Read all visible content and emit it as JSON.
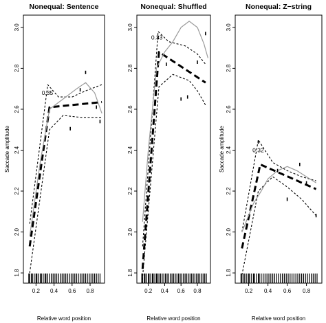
{
  "chart_data": [
    {
      "type": "line",
      "title": "Nonequal: Sentence",
      "xlabel": "Relative word position",
      "ylabel": "Saccade amplitude",
      "xticks": [
        0.2,
        0.4,
        0.6,
        0.8
      ],
      "yticks": [
        1.8,
        2.0,
        2.2,
        2.4,
        2.6,
        2.8,
        3.0
      ],
      "xlim": [
        0.06,
        0.96
      ],
      "ylim": [
        1.75,
        3.06
      ],
      "breakpoint": {
        "x": 0.35,
        "label": "0.35"
      },
      "series": [
        {
          "style": "fit",
          "x": [
            0.13,
            0.35,
            0.93
          ],
          "y": [
            1.93,
            2.61,
            2.635
          ]
        },
        {
          "style": "ci_upper",
          "x": [
            0.13,
            0.33,
            0.45,
            0.6,
            0.75,
            0.93
          ],
          "y": [
            2.04,
            2.72,
            2.66,
            2.66,
            2.69,
            2.72
          ]
        },
        {
          "style": "ci_lower",
          "x": [
            0.13,
            0.35,
            0.5,
            0.7,
            0.93
          ],
          "y": [
            1.8,
            2.5,
            2.57,
            2.56,
            2.56
          ]
        },
        {
          "style": "loess",
          "x": [
            0.13,
            0.25,
            0.35,
            0.5,
            0.65,
            0.75,
            0.85,
            0.93
          ],
          "y": [
            1.98,
            2.35,
            2.6,
            2.65,
            2.7,
            2.73,
            2.68,
            2.58
          ]
        }
      ],
      "points": {
        "x": [
          0.58,
          0.69,
          0.75,
          0.87,
          0.91
        ],
        "y": [
          2.505,
          2.695,
          2.78,
          2.61,
          2.54
        ]
      },
      "rug": [
        0.12,
        0.13,
        0.15,
        0.16,
        0.18,
        0.2,
        0.21,
        0.23,
        0.25,
        0.26,
        0.28,
        0.3,
        0.31,
        0.33,
        0.35,
        0.37,
        0.39,
        0.41,
        0.43,
        0.45,
        0.47,
        0.49,
        0.51,
        0.53,
        0.55,
        0.57,
        0.59,
        0.61,
        0.63,
        0.65,
        0.67,
        0.69,
        0.71,
        0.73,
        0.75,
        0.77,
        0.79,
        0.81,
        0.83,
        0.85,
        0.87,
        0.89,
        0.91
      ]
    },
    {
      "type": "line",
      "title": "Nonequal: Shuffled",
      "xlabel": "Relative word position",
      "ylabel": "",
      "xticks": [
        0.2,
        0.4,
        0.6,
        0.8
      ],
      "yticks": [
        1.8,
        2.0,
        2.2,
        2.4,
        2.6,
        2.8,
        3.0
      ],
      "xlim": [
        0.06,
        0.96
      ],
      "ylim": [
        1.75,
        3.06
      ],
      "breakpoint": {
        "x": 0.33,
        "label": "0.33"
      },
      "series": [
        {
          "style": "fit",
          "x": [
            0.13,
            0.33,
            0.9
          ],
          "y": [
            1.82,
            2.88,
            2.73
          ]
        },
        {
          "style": "ci_upper",
          "x": [
            0.13,
            0.32,
            0.45,
            0.65,
            0.8,
            0.9
          ],
          "y": [
            1.93,
            2.98,
            2.93,
            2.91,
            2.87,
            2.82
          ]
        },
        {
          "style": "ci_lower",
          "x": [
            0.12,
            0.33,
            0.5,
            0.7,
            0.8,
            0.9
          ],
          "y": [
            1.73,
            2.71,
            2.77,
            2.74,
            2.69,
            2.62
          ]
        },
        {
          "style": "loess",
          "x": [
            0.13,
            0.2,
            0.3,
            0.4,
            0.5,
            0.6,
            0.7,
            0.8,
            0.88,
            0.93
          ],
          "y": [
            2.05,
            2.4,
            2.8,
            2.88,
            2.93,
            3.0,
            3.03,
            3.0,
            2.92,
            2.85
          ]
        }
      ],
      "points": {
        "x": [
          0.32,
          0.42,
          0.6,
          0.68,
          0.8,
          0.9
        ],
        "y": [
          2.95,
          2.82,
          2.65,
          2.66,
          2.83,
          2.97
        ]
      },
      "rug": [
        0.12,
        0.13,
        0.15,
        0.16,
        0.18,
        0.2,
        0.21,
        0.23,
        0.25,
        0.26,
        0.28,
        0.3,
        0.31,
        0.33,
        0.35,
        0.37,
        0.39,
        0.41,
        0.43,
        0.45,
        0.47,
        0.49,
        0.51,
        0.53,
        0.55,
        0.57,
        0.59,
        0.61,
        0.63,
        0.65,
        0.67,
        0.69,
        0.71,
        0.73,
        0.75,
        0.77,
        0.79,
        0.81,
        0.83,
        0.85,
        0.87,
        0.89,
        0.91
      ]
    },
    {
      "type": "line",
      "title": "Nonequal: Z−string",
      "xlabel": "Relative word position",
      "ylabel": "Saccade amplitude",
      "xticks": [
        0.2,
        0.4,
        0.6,
        0.8
      ],
      "yticks": [
        1.8,
        2.0,
        2.2,
        2.4,
        2.6,
        2.8,
        3.0
      ],
      "xlim": [
        0.06,
        0.96
      ],
      "ylim": [
        1.75,
        3.06
      ],
      "breakpoint": {
        "x": 0.32,
        "label": "0.32"
      },
      "series": [
        {
          "style": "fit",
          "x": [
            0.13,
            0.32,
            0.9
          ],
          "y": [
            1.92,
            2.33,
            2.21
          ]
        },
        {
          "style": "ci_upper",
          "x": [
            0.13,
            0.3,
            0.45,
            0.6,
            0.75,
            0.9
          ],
          "y": [
            2.0,
            2.45,
            2.34,
            2.3,
            2.27,
            2.25
          ]
        },
        {
          "style": "ci_lower",
          "x": [
            0.13,
            0.3,
            0.45,
            0.6,
            0.75,
            0.9
          ],
          "y": [
            1.79,
            2.2,
            2.27,
            2.22,
            2.16,
            2.08
          ]
        },
        {
          "style": "loess",
          "x": [
            0.13,
            0.25,
            0.33,
            0.4,
            0.5,
            0.6,
            0.7,
            0.8,
            0.9
          ],
          "y": [
            2.0,
            2.14,
            2.2,
            2.26,
            2.3,
            2.32,
            2.3,
            2.27,
            2.24
          ]
        }
      ],
      "points": {
        "x": [
          0.3,
          0.5,
          0.6,
          0.73,
          0.8,
          0.9
        ],
        "y": [
          2.44,
          2.3,
          2.16,
          2.33,
          2.24,
          2.08
        ]
      },
      "rug": [
        0.12,
        0.13,
        0.15,
        0.16,
        0.18,
        0.2,
        0.21,
        0.23,
        0.25,
        0.26,
        0.28,
        0.3,
        0.31,
        0.33,
        0.35,
        0.37,
        0.39,
        0.41,
        0.43,
        0.45,
        0.47,
        0.49,
        0.51,
        0.53,
        0.55,
        0.57,
        0.59,
        0.61,
        0.63,
        0.65,
        0.67,
        0.69,
        0.71,
        0.73,
        0.75,
        0.77,
        0.79,
        0.81,
        0.83,
        0.85,
        0.87,
        0.89,
        0.91
      ]
    }
  ]
}
